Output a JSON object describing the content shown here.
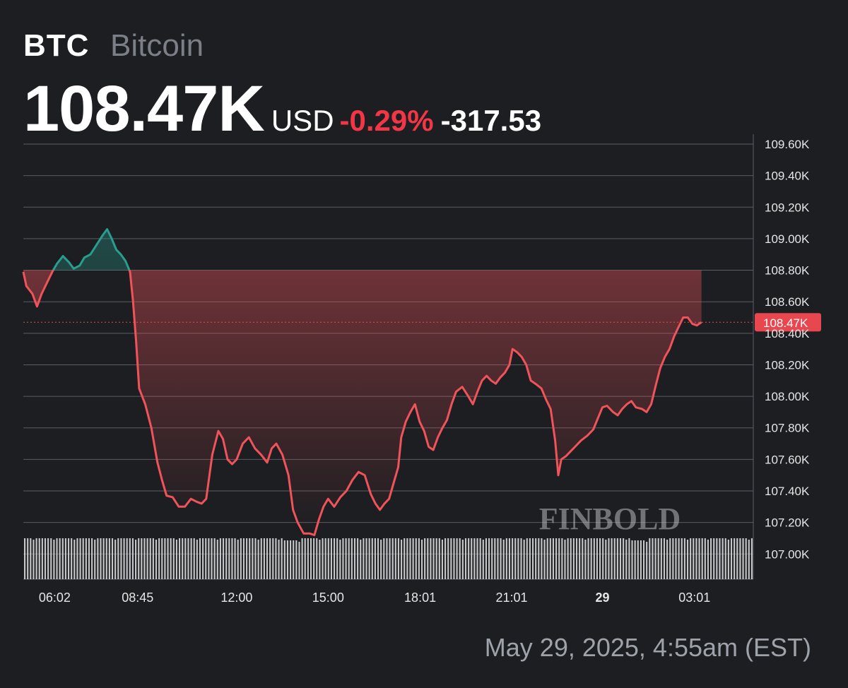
{
  "header": {
    "symbol": "BTC",
    "name": "Bitcoin",
    "price": "108.47K",
    "currency": "USD",
    "change_pct": "-0.29%",
    "change_abs": "-317.53"
  },
  "colors": {
    "up": "#2a9d8f",
    "down": "#f0535a",
    "background": "#1c1e21",
    "grid": "#5a5d63",
    "price_tag": "#e8474f"
  },
  "watermark": "FINBOLD",
  "timestamp": "May 29, 2025, 4:55am (EST)",
  "chart_data": {
    "type": "area",
    "ylim": [
      106.84,
      109.6
    ],
    "yticks": [
      107.0,
      107.2,
      107.4,
      107.6,
      107.8,
      108.0,
      108.2,
      108.4,
      108.6,
      108.8,
      109.0,
      109.2,
      109.4,
      109.6
    ],
    "ytick_labels": [
      "107.00K",
      "107.20K",
      "107.40K",
      "107.60K",
      "107.80K",
      "108.00K",
      "108.20K",
      "108.40K",
      "108.60K",
      "108.80K",
      "109.00K",
      "109.20K",
      "109.40K",
      "109.60K"
    ],
    "xlim_hours": [
      5.0,
      28.95
    ],
    "xticks": [
      {
        "h": 6.03,
        "label": "06:02",
        "bold": false
      },
      {
        "h": 8.75,
        "label": "08:45",
        "bold": false
      },
      {
        "h": 12.0,
        "label": "12:00",
        "bold": false
      },
      {
        "h": 15.0,
        "label": "15:00",
        "bold": false
      },
      {
        "h": 18.02,
        "label": "18:01",
        "bold": false
      },
      {
        "h": 21.02,
        "label": "21:01",
        "bold": false
      },
      {
        "h": 24.0,
        "label": "29",
        "bold": true
      },
      {
        "h": 27.02,
        "label": "03:01",
        "bold": false
      }
    ],
    "reference_price": 108.8,
    "current_price": 108.47,
    "current_label": "108.47K",
    "series": [
      {
        "values": [
          [
            5.0,
            108.79
          ],
          [
            5.1,
            108.7
          ],
          [
            5.3,
            108.65
          ],
          [
            5.45,
            108.57
          ],
          [
            5.6,
            108.65
          ],
          [
            5.8,
            108.73
          ],
          [
            5.95,
            108.79
          ],
          [
            6.1,
            108.84
          ],
          [
            6.3,
            108.89
          ],
          [
            6.5,
            108.85
          ],
          [
            6.65,
            108.81
          ],
          [
            6.85,
            108.83
          ],
          [
            7.0,
            108.88
          ],
          [
            7.2,
            108.9
          ],
          [
            7.4,
            108.96
          ],
          [
            7.6,
            109.02
          ],
          [
            7.75,
            109.06
          ],
          [
            7.9,
            109.0
          ],
          [
            8.05,
            108.93
          ],
          [
            8.2,
            108.9
          ],
          [
            8.35,
            108.86
          ],
          [
            8.5,
            108.79
          ],
          [
            8.6,
            108.6
          ],
          [
            8.7,
            108.35
          ],
          [
            8.8,
            108.05
          ],
          [
            9.0,
            107.95
          ],
          [
            9.2,
            107.8
          ],
          [
            9.4,
            107.58
          ],
          [
            9.55,
            107.47
          ],
          [
            9.7,
            107.37
          ],
          [
            9.9,
            107.36
          ],
          [
            10.1,
            107.3
          ],
          [
            10.3,
            107.3
          ],
          [
            10.5,
            107.35
          ],
          [
            10.7,
            107.33
          ],
          [
            10.85,
            107.32
          ],
          [
            11.0,
            107.35
          ],
          [
            11.2,
            107.63
          ],
          [
            11.4,
            107.78
          ],
          [
            11.55,
            107.73
          ],
          [
            11.7,
            107.6
          ],
          [
            11.85,
            107.57
          ],
          [
            12.0,
            107.6
          ],
          [
            12.2,
            107.7
          ],
          [
            12.4,
            107.74
          ],
          [
            12.6,
            107.67
          ],
          [
            12.8,
            107.63
          ],
          [
            13.0,
            107.58
          ],
          [
            13.15,
            107.67
          ],
          [
            13.3,
            107.7
          ],
          [
            13.5,
            107.63
          ],
          [
            13.7,
            107.5
          ],
          [
            13.85,
            107.28
          ],
          [
            14.0,
            107.2
          ],
          [
            14.2,
            107.13
          ],
          [
            14.4,
            107.13
          ],
          [
            14.55,
            107.12
          ],
          [
            14.7,
            107.22
          ],
          [
            14.85,
            107.3
          ],
          [
            15.0,
            107.35
          ],
          [
            15.2,
            107.3
          ],
          [
            15.4,
            107.36
          ],
          [
            15.6,
            107.4
          ],
          [
            15.8,
            107.47
          ],
          [
            16.0,
            107.52
          ],
          [
            16.2,
            107.5
          ],
          [
            16.4,
            107.38
          ],
          [
            16.55,
            107.32
          ],
          [
            16.7,
            107.28
          ],
          [
            16.85,
            107.32
          ],
          [
            17.0,
            107.35
          ],
          [
            17.15,
            107.45
          ],
          [
            17.3,
            107.55
          ],
          [
            17.4,
            107.74
          ],
          [
            17.55,
            107.84
          ],
          [
            17.7,
            107.9
          ],
          [
            17.85,
            107.95
          ],
          [
            18.0,
            107.84
          ],
          [
            18.15,
            107.78
          ],
          [
            18.3,
            107.68
          ],
          [
            18.45,
            107.66
          ],
          [
            18.6,
            107.74
          ],
          [
            18.75,
            107.8
          ],
          [
            18.9,
            107.85
          ],
          [
            19.05,
            107.95
          ],
          [
            19.2,
            108.03
          ],
          [
            19.4,
            108.06
          ],
          [
            19.6,
            108.0
          ],
          [
            19.75,
            107.95
          ],
          [
            19.9,
            108.03
          ],
          [
            20.05,
            108.1
          ],
          [
            20.2,
            108.13
          ],
          [
            20.35,
            108.1
          ],
          [
            20.5,
            108.08
          ],
          [
            20.65,
            108.12
          ],
          [
            20.8,
            108.15
          ],
          [
            20.95,
            108.2
          ],
          [
            21.05,
            108.3
          ],
          [
            21.2,
            108.28
          ],
          [
            21.35,
            108.25
          ],
          [
            21.5,
            108.2
          ],
          [
            21.65,
            108.1
          ],
          [
            21.8,
            108.08
          ],
          [
            22.0,
            108.05
          ],
          [
            22.15,
            107.98
          ],
          [
            22.3,
            107.92
          ],
          [
            22.45,
            107.72
          ],
          [
            22.55,
            107.5
          ],
          [
            22.65,
            107.6
          ],
          [
            22.8,
            107.62
          ],
          [
            22.95,
            107.65
          ],
          [
            23.1,
            107.68
          ],
          [
            23.3,
            107.72
          ],
          [
            23.5,
            107.75
          ],
          [
            23.7,
            107.79
          ],
          [
            23.85,
            107.86
          ],
          [
            24.0,
            107.93
          ],
          [
            24.15,
            107.94
          ],
          [
            24.35,
            107.9
          ],
          [
            24.5,
            107.88
          ],
          [
            24.65,
            107.92
          ],
          [
            24.8,
            107.95
          ],
          [
            24.95,
            107.97
          ],
          [
            25.1,
            107.93
          ],
          [
            25.3,
            107.92
          ],
          [
            25.45,
            107.9
          ],
          [
            25.6,
            107.95
          ],
          [
            25.75,
            108.07
          ],
          [
            25.9,
            108.18
          ],
          [
            26.05,
            108.25
          ],
          [
            26.2,
            108.3
          ],
          [
            26.35,
            108.38
          ],
          [
            26.5,
            108.44
          ],
          [
            26.65,
            108.5
          ],
          [
            26.8,
            108.5
          ],
          [
            26.95,
            108.46
          ],
          [
            27.1,
            108.45
          ],
          [
            27.25,
            108.47
          ]
        ]
      }
    ],
    "volume_bars": 250
  }
}
